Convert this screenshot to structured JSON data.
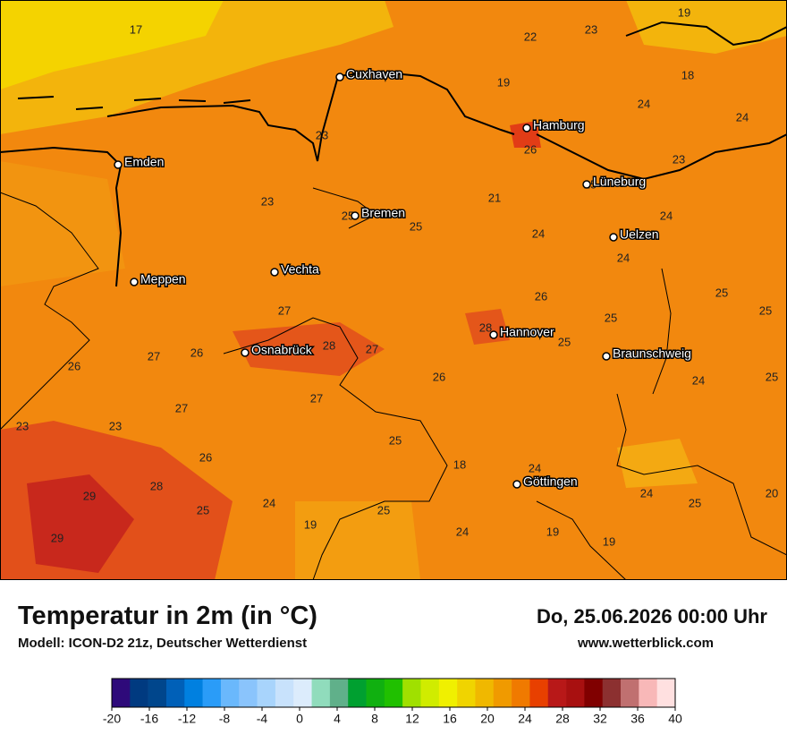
{
  "title": "Temperatur in 2m (in °C)",
  "subtitle": "Modell: ICON-D2 21z, Deutscher Wetterdienst",
  "datetime": "Do, 25.06.2026 00:00 Uhr",
  "website": "www.wetterblick.com",
  "map": {
    "cities": [
      "Cuxhaven",
      "Hamburg",
      "Emden",
      "Lüneburg",
      "Bremen",
      "Uelzen",
      "Vechta",
      "Meppen",
      "Hannover",
      "Osnabrück",
      "Braunschweig",
      "Göttingen"
    ],
    "temperature_labels": [
      17,
      19,
      22,
      23,
      18,
      19,
      24,
      24,
      23,
      26,
      23,
      23,
      21,
      25,
      24,
      25,
      25,
      24,
      24,
      26,
      25,
      27,
      25,
      25,
      28,
      25,
      28,
      27,
      26,
      27,
      26,
      26,
      24,
      25,
      27,
      27,
      23,
      23,
      25,
      26,
      18,
      24,
      29,
      28,
      24,
      20,
      25,
      24,
      25,
      25,
      19,
      24,
      19,
      19,
      29
    ]
  },
  "colorbar": {
    "ticks": [
      -20,
      -16,
      -12,
      -8,
      -4,
      0,
      4,
      8,
      12,
      16,
      20,
      24,
      28,
      32,
      36,
      40
    ],
    "colors": [
      "#2e0a7a",
      "#003a80",
      "#00468c",
      "#0060b8",
      "#0080e0",
      "#2a9cf8",
      "#6ab8fc",
      "#8ac4fc",
      "#a8d4fc",
      "#c8e2fc",
      "#dcecfc",
      "#90dcbc",
      "#60b08a",
      "#00a030",
      "#10b010",
      "#20c000",
      "#a0e000",
      "#d0ec00",
      "#f0f000",
      "#f0d400",
      "#f0b800",
      "#f09a00",
      "#f07a00",
      "#e84000",
      "#b81818",
      "#a81010",
      "#800000",
      "#8c3030",
      "#c07070",
      "#f8b8b8",
      "#ffe0e0"
    ]
  }
}
